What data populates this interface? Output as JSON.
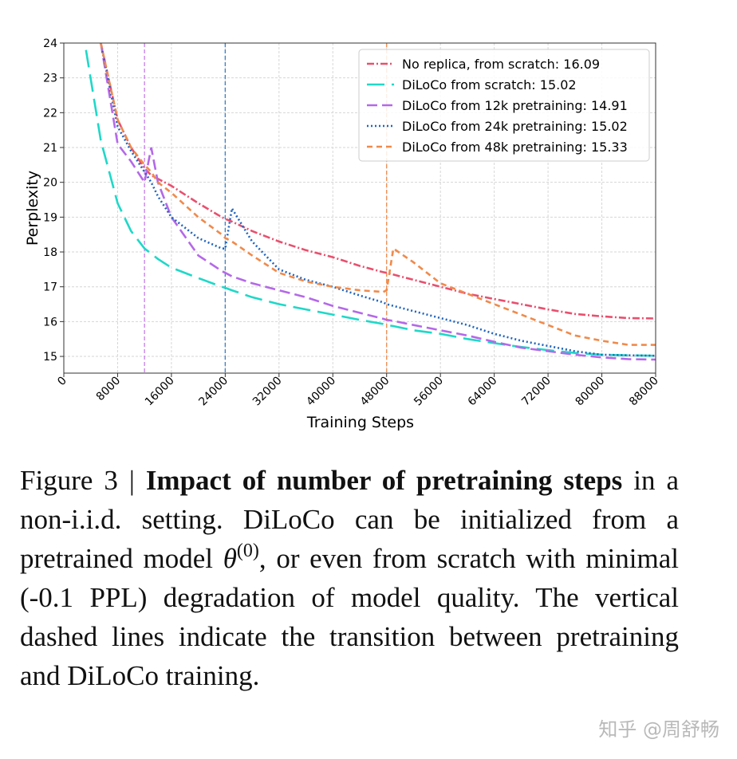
{
  "chart_data": {
    "type": "line",
    "xlabel": "Training Steps",
    "ylabel": "Perplexity",
    "x": [
      3300,
      5500,
      8000,
      10000,
      12000,
      13000,
      14000,
      16000,
      20000,
      23500,
      24000,
      25000,
      28000,
      32000,
      36000,
      40000,
      44000,
      47500,
      48000,
      49000,
      52000,
      56000,
      60000,
      64000,
      68000,
      72000,
      76000,
      80000,
      84000,
      88000
    ],
    "series": [
      {
        "name": "No replica, from scratch: 16.09",
        "color": "#e8506e",
        "linestyle": "dashdot",
        "values": [
          null,
          24,
          21.8,
          21.0,
          20.4,
          20.2,
          20.1,
          19.9,
          19.4,
          19.0,
          18.95,
          18.87,
          18.6,
          18.3,
          18.05,
          17.85,
          17.6,
          17.42,
          17.4,
          17.35,
          17.2,
          17.0,
          16.8,
          16.65,
          16.5,
          16.35,
          16.22,
          16.15,
          16.1,
          16.09
        ]
      },
      {
        "name": "DiLoCo from scratch: 15.02",
        "color": "#1fd8c8",
        "linestyle": "longdash",
        "values": [
          23.8,
          21.2,
          19.4,
          18.6,
          18.1,
          17.95,
          17.8,
          17.55,
          17.25,
          17.0,
          16.97,
          16.9,
          16.7,
          16.5,
          16.35,
          16.2,
          16.05,
          15.93,
          15.9,
          15.87,
          15.75,
          15.65,
          15.5,
          15.38,
          15.27,
          15.18,
          15.1,
          15.05,
          15.03,
          15.02
        ]
      },
      {
        "name": "DiLoCo from 12k pretraining: 14.91",
        "color": "#b469e8",
        "linestyle": "dashed",
        "values": [
          null,
          24,
          21.1,
          20.6,
          20.0,
          21.0,
          20.0,
          19.0,
          17.9,
          17.45,
          17.4,
          17.3,
          17.1,
          16.9,
          16.7,
          16.45,
          16.25,
          16.08,
          16.05,
          16.02,
          15.9,
          15.75,
          15.6,
          15.42,
          15.25,
          15.15,
          15.05,
          14.97,
          14.92,
          14.91
        ]
      },
      {
        "name": "DiLoCo from 24k pretraining: 15.02",
        "color": "#1f64c0",
        "linestyle": "dotted",
        "values": [
          null,
          24,
          21.6,
          20.9,
          20.3,
          20.0,
          19.6,
          19.0,
          18.4,
          18.1,
          18.1,
          19.25,
          18.3,
          17.5,
          17.2,
          17.0,
          16.75,
          16.55,
          16.5,
          16.45,
          16.3,
          16.1,
          15.9,
          15.65,
          15.45,
          15.3,
          15.15,
          15.05,
          15.03,
          15.02
        ]
      },
      {
        "name": "DiLoCo from 48k pretraining: 15.33",
        "color": "#f08a4b",
        "linestyle": "shortdash",
        "values": [
          null,
          24,
          21.8,
          21.0,
          20.5,
          20.3,
          20.0,
          19.7,
          19.0,
          18.5,
          18.4,
          18.3,
          17.9,
          17.4,
          17.15,
          17.0,
          16.9,
          16.85,
          16.9,
          18.1,
          17.7,
          17.1,
          16.8,
          16.5,
          16.2,
          15.9,
          15.6,
          15.45,
          15.33,
          15.33
        ]
      }
    ],
    "vlines": [
      {
        "x": 12000,
        "color": "#c77de8"
      },
      {
        "x": 24000,
        "color": "#3a80c8"
      },
      {
        "x": 48000,
        "color": "#f08a4b"
      }
    ],
    "xlim": [
      0,
      88000
    ],
    "xticks": [
      0,
      8000,
      16000,
      24000,
      32000,
      40000,
      48000,
      56000,
      64000,
      72000,
      80000,
      88000
    ],
    "ylim": [
      14.52,
      24
    ],
    "yticks": [
      15,
      16,
      17,
      18,
      19,
      20,
      21,
      22,
      23,
      24
    ],
    "grid": true,
    "legend": "upper right"
  },
  "caption": {
    "label": "Figure 3 | ",
    "bold": "Impact of number of pretraining steps",
    "text1": " in a non-i.i.d. setting. DiLoCo can be initial­ized from a pretrained model ",
    "math": "θ",
    "sup": "(0)",
    "text2": ", or even from scratch with minimal (-0.1 PPL) degradation of model quality. The vertical dashed lines indicate the transition between pretraining and DiLoCo training."
  },
  "watermark": "知乎 @周舒畅"
}
